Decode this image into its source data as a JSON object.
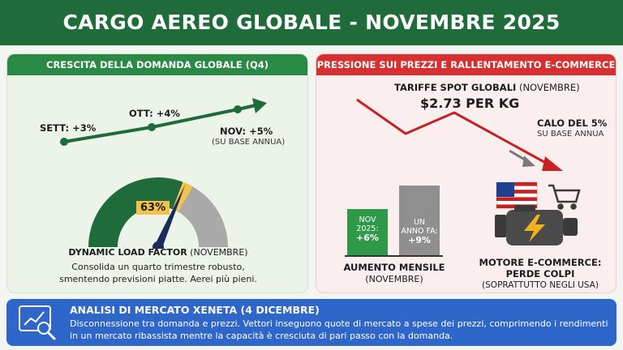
{
  "title": "CARGO AEREO GLOBALE - NOVEMBRE 2025",
  "left_panel": {
    "header": "CRESCITA DELLA DOMANDA GLOBALE (Q4)",
    "points": [
      {
        "label": "SETT: +3%"
      },
      {
        "label": "OTT: +4%"
      },
      {
        "label": "NOV: +5%"
      }
    ],
    "nov_note": "(SU BASE ANNUA)",
    "gauge": {
      "value_label": "63%",
      "value": 0.63,
      "title_bold": "DYNAMIC LOAD FACTOR",
      "title_suffix": " (NOVEMBRE)",
      "desc_line1": "Consolida un quarto trimestre robusto,",
      "desc_line2": "smentendo previsioni piatte. Aerei più pieni.",
      "colors": {
        "fill": "#1f6b3a",
        "rest": "#a9a9a9",
        "marker": "#f2c14e",
        "needle": "#1a2a5a"
      }
    }
  },
  "right_panel": {
    "header": "PRESSIONE SUI PREZZI E RALLENTAMENTO E-COMMERCE",
    "spot_label_bold": "TARIFFE SPOT GLOBALI",
    "spot_label_suffix": " (NOVEMBRE)",
    "spot_value": "$2.73 PER KG",
    "drop_label": "CALO DEL 5%",
    "drop_note": "SU BASE ANNUA",
    "bars": [
      {
        "line1": "NOV",
        "line2": "2025:",
        "value_label": "+6%",
        "value": 6,
        "color": "#2e9a48"
      },
      {
        "line1": "UN",
        "line2": "ANNO FA:",
        "value_label": "+9%",
        "value": 9,
        "color": "#8f8f8f"
      }
    ],
    "bars_title": "AUMENTO MENSILE",
    "bars_note": "(NOVEMBRE)",
    "engine_title_line1": "MOTORE E-COMMERCE:",
    "engine_title_line2": "PERDE COLPI",
    "engine_note": "(SOPRATTUTTO NEGLI USA)"
  },
  "footer": {
    "title": "ANALISI DI MERCATO XENETA (4 DICEMBRE)",
    "text": "Disconnessione tra domanda e prezzi. Vettori inseguono quote di mercato a spese dei prezzi, comprimendo i rendimenti in un mercato ribassista mentre la capacità è cresciuta di pari passo con la domanda."
  },
  "icons": {
    "trend": "growth-arrow-icon",
    "price_drop": "down-trend-arrow-icon",
    "flag": "us-flag-icon",
    "cart": "shopping-cart-icon",
    "engine": "engine-bolt-icon",
    "analysis": "chart-magnifier-icon"
  }
}
